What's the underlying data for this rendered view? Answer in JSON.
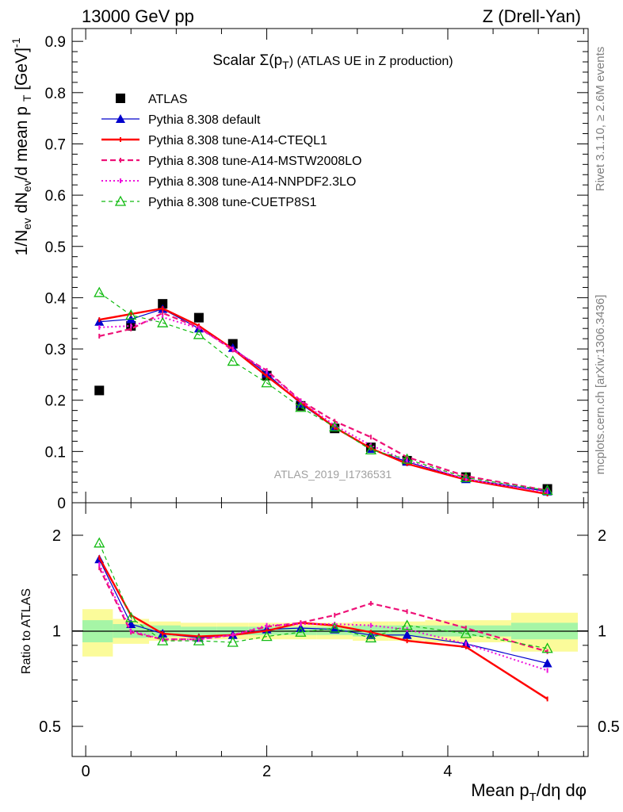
{
  "header": {
    "left": "13000 GeV pp",
    "right": "Z (Drell-Yan)"
  },
  "side_labels": {
    "top": "Rivet 3.1.10, ≥ 2.6M events",
    "bottom": "mcplots.cern.ch [arXiv:1306.3436]"
  },
  "watermark": "ATLAS_2019_I1736531",
  "colors": {
    "data": "#000000",
    "default": "#0000cc",
    "cteql1": "#ff0000",
    "mstw": "#ee1177",
    "nnpdf": "#ee11dd",
    "cuetp8s1": "#11bb11",
    "band_inner": "#a6f5a6",
    "band_outer": "#fbfb9a"
  },
  "chart_data": [
    {
      "type": "line",
      "title": "Scalar Σ(p_T) (ATLAS UE in Z production)",
      "xlabel": "",
      "ylabel": "1/N_ev dN_ev/d mean p_T [GeV]^-1",
      "xlim": [
        -0.15,
        5.55
      ],
      "ylim": [
        0,
        0.925
      ],
      "yticks": [
        0,
        0.1,
        0.2,
        0.3,
        0.4,
        0.5,
        0.6,
        0.7,
        0.8,
        0.9
      ],
      "ytick_labels": [
        "0",
        "0.1",
        "0.2",
        "0.3",
        "0.4",
        "0.5",
        "0.6",
        "0.7",
        "0.8",
        "0.9"
      ],
      "legend_position": "top-left",
      "x": [
        0.15,
        0.5,
        0.85,
        1.25,
        1.625,
        2.0,
        2.375,
        2.75,
        3.15,
        3.55,
        4.2,
        5.1
      ],
      "series": [
        {
          "name": "ATLAS",
          "key": "data",
          "marker": "square",
          "values": [
            0.219,
            0.345,
            0.388,
            0.361,
            0.31,
            0.248,
            0.189,
            0.145,
            0.108,
            0.082,
            0.05,
            0.027
          ]
        },
        {
          "name": "Pythia 8.308 default",
          "key": "default",
          "marker": "triangle-filled",
          "values": [
            0.353,
            0.358,
            0.378,
            0.34,
            0.302,
            0.252,
            0.193,
            0.147,
            0.105,
            0.08,
            0.046,
            0.022
          ]
        },
        {
          "name": "Pythia 8.308 tune-A14-CTEQL1",
          "key": "cteql1",
          "marker": "none",
          "values": [
            0.357,
            0.368,
            0.379,
            0.345,
            0.3,
            0.247,
            0.196,
            0.147,
            0.106,
            0.076,
            0.045,
            0.017
          ]
        },
        {
          "name": "Pythia 8.308 tune-A14-MSTW2008LO",
          "key": "mstw",
          "marker": "none",
          "values": [
            0.325,
            0.339,
            0.37,
            0.342,
            0.298,
            0.258,
            0.199,
            0.159,
            0.128,
            0.089,
            0.052,
            0.024
          ]
        },
        {
          "name": "Pythia 8.308 tune-A14-NNPDF2.3LO",
          "key": "nnpdf",
          "marker": "none",
          "values": [
            0.342,
            0.345,
            0.362,
            0.34,
            0.3,
            0.256,
            0.198,
            0.151,
            0.112,
            0.082,
            0.046,
            0.02
          ]
        },
        {
          "name": "Pythia 8.308 tune-CUETP8S1",
          "key": "cuetp8s1",
          "marker": "triangle-open",
          "values": [
            0.41,
            0.366,
            0.351,
            0.328,
            0.276,
            0.234,
            0.186,
            0.148,
            0.103,
            0.085,
            0.049,
            0.024
          ]
        }
      ]
    },
    {
      "type": "line",
      "title": "",
      "xlabel": "Mean p_T/dη dφ",
      "ylabel": "Ratio to ATLAS",
      "xlim": [
        -0.15,
        5.55
      ],
      "ylim": [
        0.35,
        2.2
      ],
      "yticks": [
        0.5,
        1,
        2
      ],
      "ytick_labels": [
        "0.5",
        "1",
        "2"
      ],
      "xticks": [
        0,
        2,
        4
      ],
      "xtick_labels": [
        "0",
        "2",
        "4"
      ],
      "reference_band_bins": [
        [
          -0.15,
          0.3
        ],
        [
          0.3,
          0.7
        ],
        [
          0.7,
          1.05
        ],
        [
          1.05,
          1.45
        ],
        [
          1.45,
          1.8
        ],
        [
          1.8,
          2.2
        ],
        [
          2.2,
          2.55
        ],
        [
          2.55,
          2.95
        ],
        [
          2.95,
          3.35
        ],
        [
          3.35,
          3.75
        ],
        [
          3.75,
          4.7
        ],
        [
          4.7,
          5.55
        ]
      ],
      "reference_band_inner": [
        0.08,
        0.05,
        0.04,
        0.03,
        0.03,
        0.03,
        0.03,
        0.03,
        0.04,
        0.04,
        0.04,
        0.06
      ],
      "reference_band_outer": [
        0.17,
        0.09,
        0.07,
        0.06,
        0.06,
        0.06,
        0.06,
        0.06,
        0.07,
        0.07,
        0.08,
        0.14
      ],
      "x": [
        0.15,
        0.5,
        0.85,
        1.25,
        1.625,
        2.0,
        2.375,
        2.75,
        3.15,
        3.55,
        4.2,
        5.1
      ],
      "series": [
        {
          "name": "Pythia 8.308 default",
          "key": "default",
          "marker": "triangle-filled",
          "values": [
            1.68,
            1.05,
            0.98,
            0.95,
            0.97,
            1.01,
            1.02,
            1.01,
            0.97,
            0.97,
            0.91,
            0.79
          ]
        },
        {
          "name": "Pythia 8.308 tune-A14-CTEQL1",
          "key": "cteql1",
          "marker": "none",
          "values": [
            1.7,
            1.12,
            0.98,
            0.96,
            0.97,
            1.0,
            1.06,
            1.04,
            0.99,
            0.93,
            0.89,
            0.61
          ]
        },
        {
          "name": "Pythia 8.308 tune-A14-MSTW2008LO",
          "key": "mstw",
          "marker": "none",
          "values": [
            1.58,
            0.99,
            0.94,
            0.94,
            0.97,
            1.03,
            1.06,
            1.12,
            1.22,
            1.15,
            1.02,
            0.86
          ]
        },
        {
          "name": "Pythia 8.308 tune-A14-NNPDF2.3LO",
          "key": "nnpdf",
          "marker": "none",
          "values": [
            1.62,
            1.0,
            0.94,
            0.94,
            0.97,
            1.04,
            1.05,
            1.05,
            1.04,
            1.01,
            0.91,
            0.75
          ]
        },
        {
          "name": "Pythia 8.308 tune-CUETP8S1",
          "key": "cuetp8s1",
          "marker": "triangle-open",
          "values": [
            1.89,
            1.1,
            0.93,
            0.93,
            0.92,
            0.96,
            0.99,
            1.02,
            0.95,
            1.04,
            0.98,
            0.88
          ]
        }
      ]
    }
  ]
}
